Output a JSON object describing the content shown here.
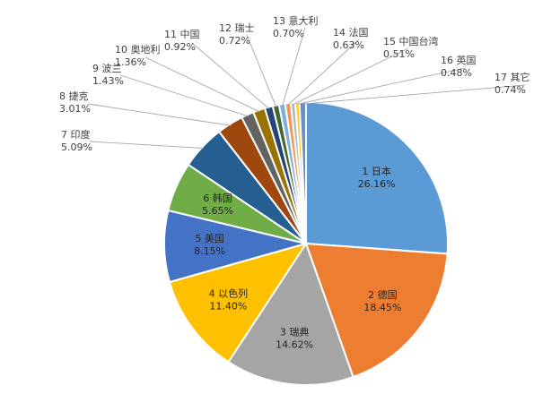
{
  "chart_data": {
    "type": "pie",
    "title": "",
    "slices": [
      {
        "label": "1 日本",
        "value": 26.16,
        "pct": "26.16%",
        "color": "#5b9bd5"
      },
      {
        "label": "2 德国",
        "value": 18.45,
        "pct": "18.45%",
        "color": "#ed7d31"
      },
      {
        "label": "3 瑞典",
        "value": 14.62,
        "pct": "14.62%",
        "color": "#a5a5a5"
      },
      {
        "label": "4 以色列",
        "value": 11.4,
        "pct": "11.40%",
        "color": "#ffc000"
      },
      {
        "label": "5 美国",
        "value": 8.15,
        "pct": "8.15%",
        "color": "#4472c4"
      },
      {
        "label": "6 韩国",
        "value": 5.65,
        "pct": "5.65%",
        "color": "#70ad47"
      },
      {
        "label": "7 印度",
        "value": 5.09,
        "pct": "5.09%",
        "color": "#255e91"
      },
      {
        "label": "8 捷克",
        "value": 3.01,
        "pct": "3.01%",
        "color": "#9e480e"
      },
      {
        "label": "9 波兰",
        "value": 1.43,
        "pct": "1.43%",
        "color": "#636363"
      },
      {
        "label": "10 奥地利",
        "value": 1.36,
        "pct": "1.36%",
        "color": "#997300"
      },
      {
        "label": "11 中国",
        "value": 0.92,
        "pct": "0.92%",
        "color": "#264478"
      },
      {
        "label": "12 瑞士",
        "value": 0.72,
        "pct": "0.72%",
        "color": "#43682b"
      },
      {
        "label": "13 意大利",
        "value": 0.7,
        "pct": "0.70%",
        "color": "#7cafdd"
      },
      {
        "label": "14 法国",
        "value": 0.63,
        "pct": "0.63%",
        "color": "#f1975a"
      },
      {
        "label": "15 中国台湾",
        "value": 0.51,
        "pct": "0.51%",
        "color": "#b7b7b7"
      },
      {
        "label": "16 英国",
        "value": 0.48,
        "pct": "0.48%",
        "color": "#ffcd33"
      },
      {
        "label": "17 其它",
        "value": 0.74,
        "pct": "0.74%",
        "color": "#698ed0"
      }
    ],
    "legend": "none",
    "start_angle": "12 o'clock, clockwise"
  }
}
